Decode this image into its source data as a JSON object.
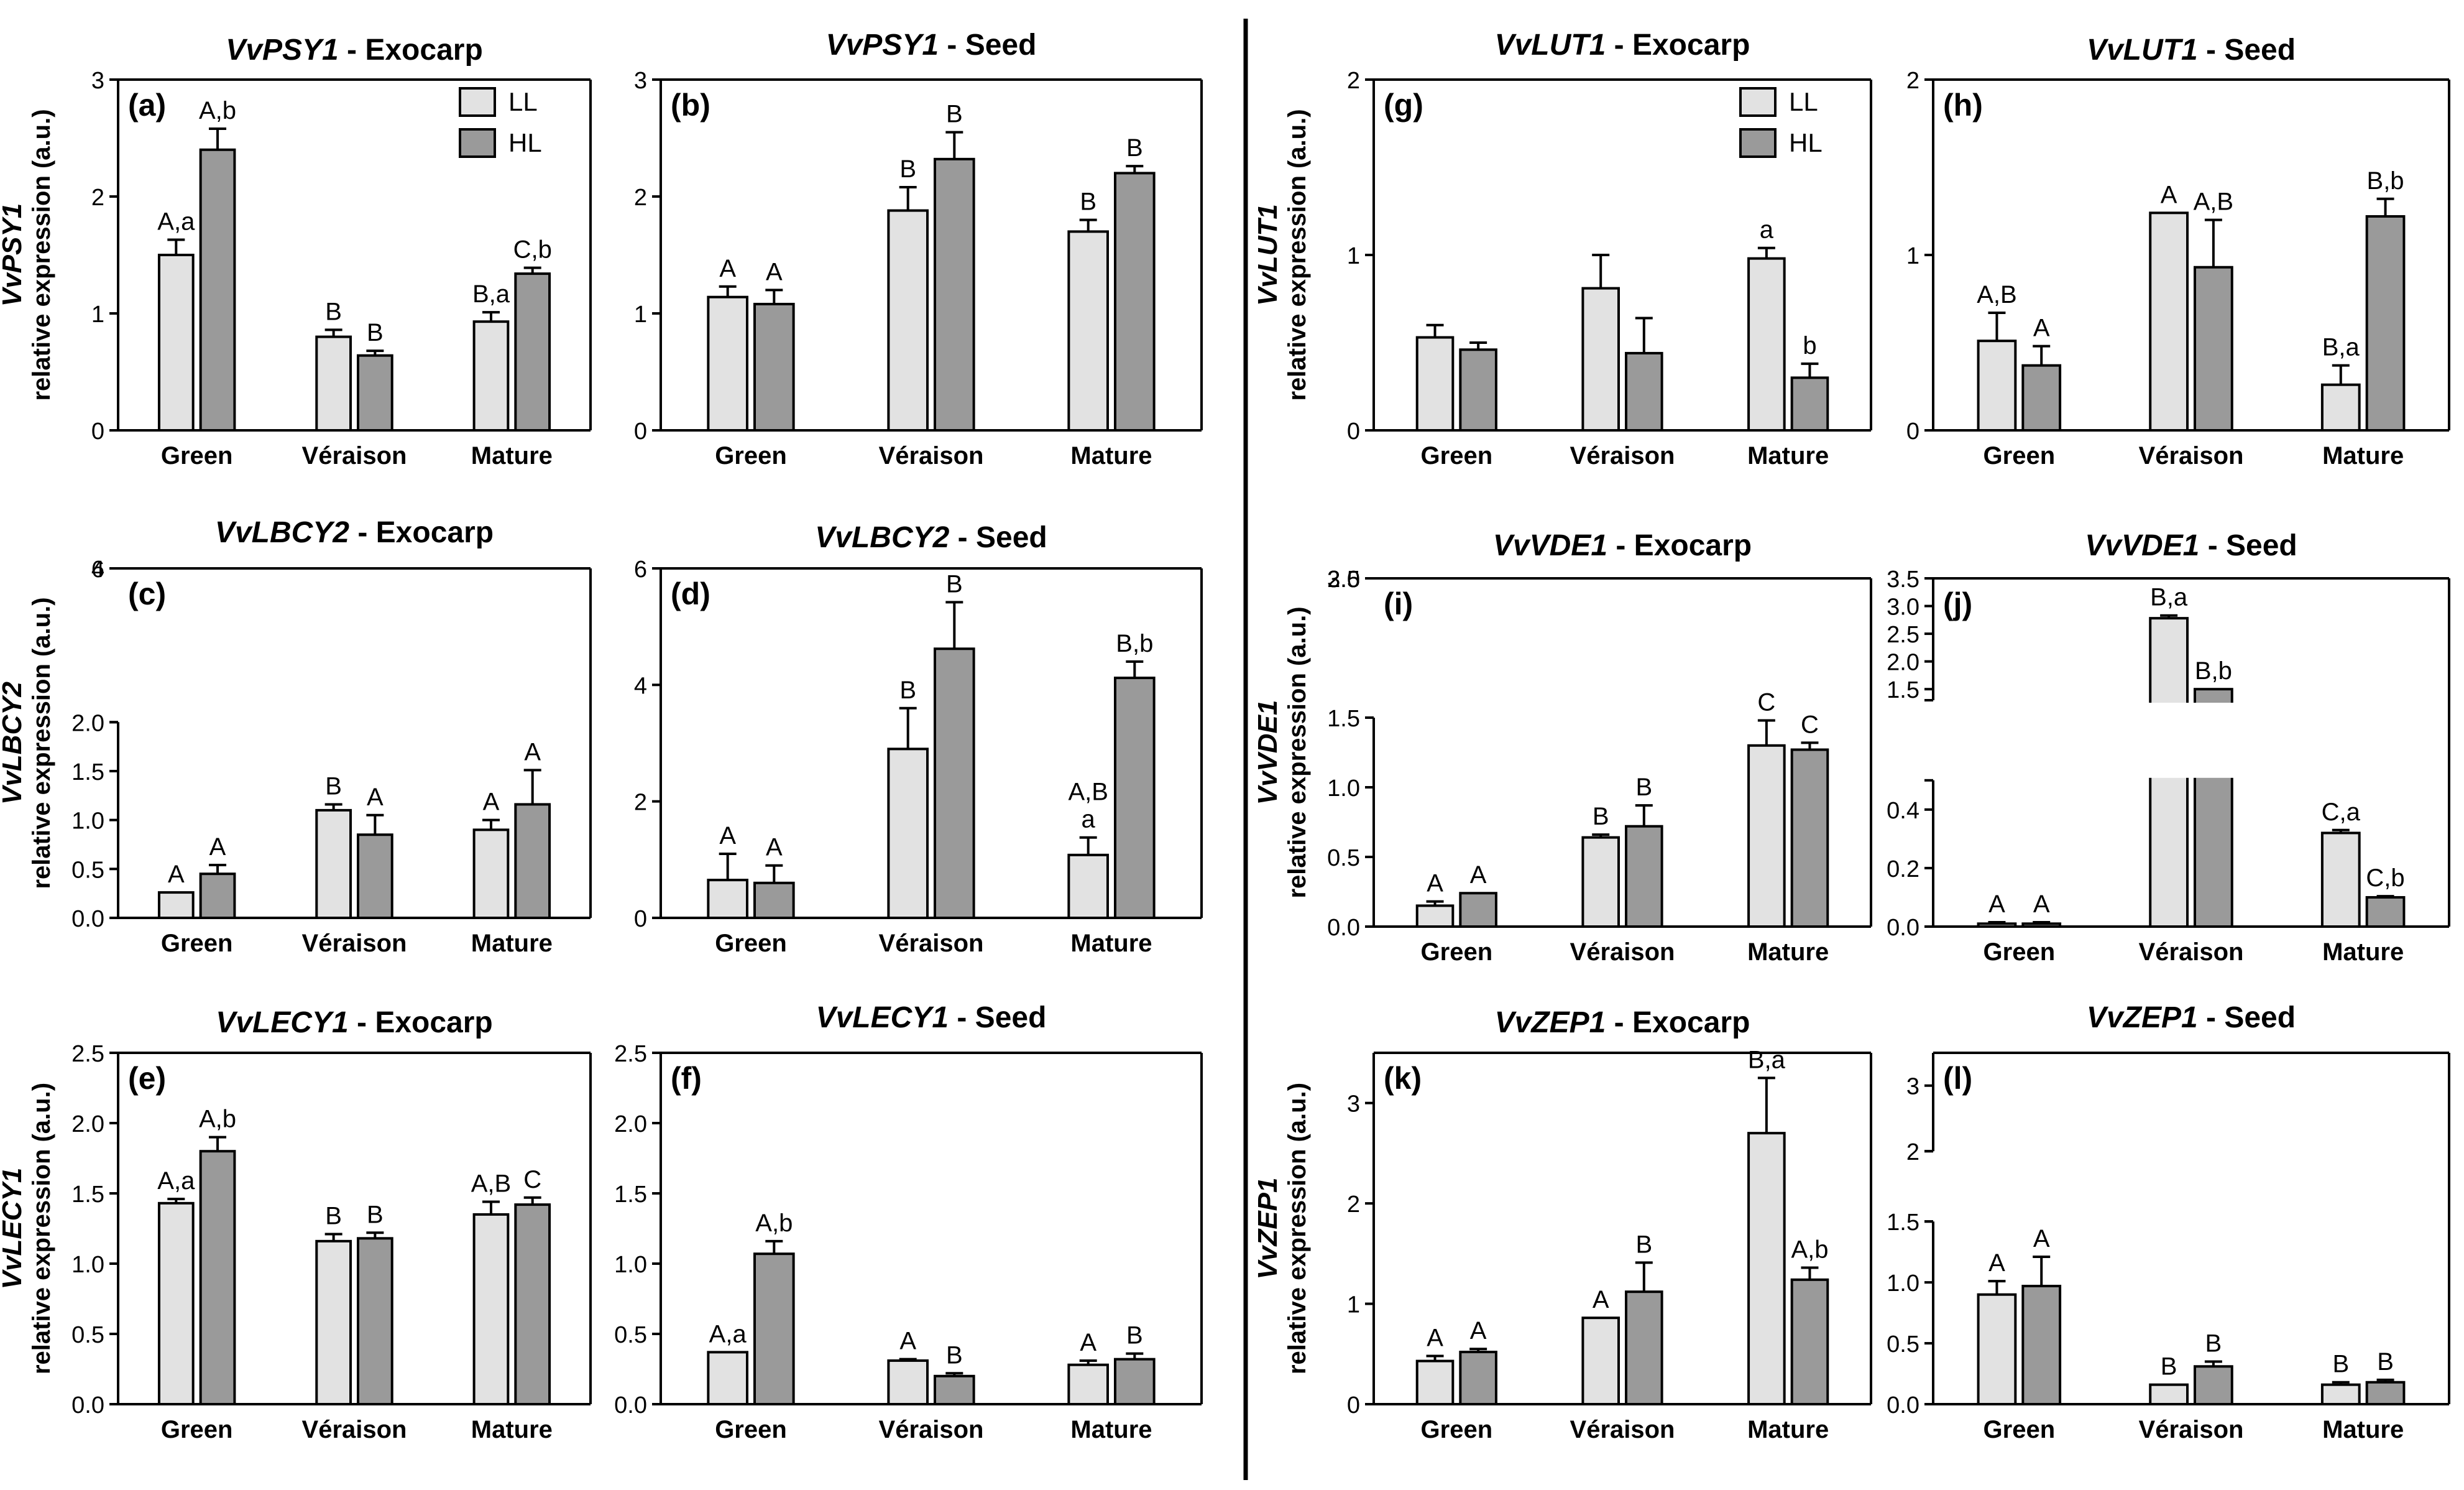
{
  "figure": {
    "colors": {
      "LL": "#e2e2e2",
      "HL": "#9a9a9a",
      "axis": "#000000"
    },
    "legend": [
      "LL",
      "HL"
    ],
    "categories": [
      "Green",
      "Véraison",
      "Mature"
    ]
  },
  "chart_data": [
    {
      "type": "bar",
      "panel": "(a)",
      "title_gene": "VvPSY1",
      "title_tissue": " - Exocarp",
      "ylabel_gene": "VvPSY1",
      "ylabel": "relative expression (a.u.)",
      "categories": [
        "Green",
        "Véraison",
        "Mature"
      ],
      "ylim": [
        0,
        3
      ],
      "yticks": [
        0,
        1,
        2,
        3
      ],
      "legend": "top-right",
      "series": [
        {
          "name": "LL",
          "values": [
            1.5,
            0.8,
            0.93
          ],
          "errors": [
            0.13,
            0.06,
            0.08
          ],
          "labels": [
            "A,a",
            "B",
            "B,a"
          ]
        },
        {
          "name": "HL",
          "values": [
            2.4,
            0.64,
            1.34
          ],
          "errors": [
            0.18,
            0.04,
            0.05
          ],
          "labels": [
            "A,b",
            "B",
            "C,b"
          ]
        }
      ]
    },
    {
      "type": "bar",
      "panel": "(b)",
      "title_gene": "VvPSY1",
      "title_tissue": " - Seed",
      "categories": [
        "Green",
        "Véraison",
        "Mature"
      ],
      "ylim": [
        0,
        3
      ],
      "yticks": [
        0,
        1,
        2,
        3
      ],
      "series": [
        {
          "name": "LL",
          "values": [
            1.14,
            1.88,
            1.7
          ],
          "errors": [
            0.09,
            0.2,
            0.1
          ],
          "labels": [
            "A",
            "B",
            "B"
          ]
        },
        {
          "name": "HL",
          "values": [
            1.08,
            2.32,
            2.2
          ],
          "errors": [
            0.12,
            0.23,
            0.06
          ],
          "labels": [
            "A",
            "B",
            "B"
          ]
        }
      ]
    },
    {
      "type": "bar",
      "panel": "(c)",
      "title_gene": "VvLBCY2",
      "title_tissue": " - Exocarp",
      "ylabel_gene": "VvLBCY2",
      "ylabel": "relative expression (a.u.)",
      "categories": [
        "Green",
        "Véraison",
        "Mature"
      ],
      "ylim": [
        0,
        6
      ],
      "axis_break": [
        2,
        4
      ],
      "yticks": [
        0,
        0.5,
        1.0,
        1.5,
        2.0,
        4,
        6
      ],
      "ytick_labels": [
        "0.0",
        "0.5",
        "1.0",
        "1.5",
        "2.0",
        "4",
        "6"
      ],
      "series": [
        {
          "name": "LL",
          "values": [
            0.26,
            1.1,
            0.9
          ],
          "errors": [
            0,
            0.06,
            0.1
          ],
          "labels": [
            "A",
            "B",
            "A"
          ]
        },
        {
          "name": "HL",
          "values": [
            0.45,
            0.85,
            1.16
          ],
          "errors": [
            0.09,
            0.2,
            0.35
          ],
          "labels": [
            "A",
            "A",
            "A"
          ]
        }
      ]
    },
    {
      "type": "bar",
      "panel": "(d)",
      "title_gene": "VvLBCY2",
      "title_tissue": " - Seed",
      "categories": [
        "Green",
        "Véraison",
        "Mature"
      ],
      "ylim": [
        0,
        6
      ],
      "yticks": [
        0,
        2,
        4,
        6
      ],
      "series": [
        {
          "name": "LL",
          "values": [
            0.65,
            2.9,
            1.08
          ],
          "errors": [
            0.45,
            0.7,
            0.3
          ],
          "labels": [
            "A",
            "B",
            "A,B\na"
          ]
        },
        {
          "name": "HL",
          "values": [
            0.6,
            4.62,
            4.12
          ],
          "errors": [
            0.3,
            0.8,
            0.28
          ],
          "labels": [
            "A",
            "B",
            "B,b"
          ]
        }
      ]
    },
    {
      "type": "bar",
      "panel": "(e)",
      "title_gene": "VvLECY1",
      "title_tissue": " - Exocarp",
      "ylabel_gene": "VvLECY1",
      "ylabel": "relative expression (a.u.)",
      "categories": [
        "Green",
        "Véraison",
        "Mature"
      ],
      "ylim": [
        0,
        2.5
      ],
      "yticks": [
        0,
        0.5,
        1.0,
        1.5,
        2.0,
        2.5
      ],
      "ytick_labels": [
        "0.0",
        "0.5",
        "1.0",
        "1.5",
        "2.0",
        "2.5"
      ],
      "series": [
        {
          "name": "LL",
          "values": [
            1.43,
            1.16,
            1.35
          ],
          "errors": [
            0.03,
            0.05,
            0.09
          ],
          "labels": [
            "A,a",
            "B",
            "A,B"
          ]
        },
        {
          "name": "HL",
          "values": [
            1.8,
            1.18,
            1.42
          ],
          "errors": [
            0.1,
            0.04,
            0.05
          ],
          "labels": [
            "A,b",
            "B",
            "C"
          ]
        }
      ]
    },
    {
      "type": "bar",
      "panel": "(f)",
      "title_gene": "VvLECY1",
      "title_tissue": " - Seed",
      "categories": [
        "Green",
        "Véraison",
        "Mature"
      ],
      "ylim": [
        0,
        2.5
      ],
      "yticks": [
        0,
        0.5,
        1.0,
        1.5,
        2.0,
        2.5
      ],
      "ytick_labels": [
        "0.0",
        "0.5",
        "1.0",
        "1.5",
        "2.0",
        "2.5"
      ],
      "series": [
        {
          "name": "LL",
          "values": [
            0.37,
            0.31,
            0.28
          ],
          "errors": [
            0,
            0.01,
            0.03
          ],
          "labels": [
            "A,a",
            "A",
            "A"
          ]
        },
        {
          "name": "HL",
          "values": [
            1.07,
            0.2,
            0.32
          ],
          "errors": [
            0.09,
            0.02,
            0.04
          ],
          "labels": [
            "A,b",
            "B",
            "B"
          ]
        }
      ]
    },
    {
      "type": "bar",
      "panel": "(g)",
      "title_gene": "VvLUT1",
      "title_tissue": " - Exocarp",
      "ylabel_gene": "VvLUT1",
      "ylabel": "relative expression (a.u.)",
      "categories": [
        "Green",
        "Véraison",
        "Mature"
      ],
      "ylim": [
        0,
        2
      ],
      "yticks": [
        0,
        1,
        2
      ],
      "legend": "top-right",
      "series": [
        {
          "name": "LL",
          "values": [
            0.53,
            0.81,
            0.98
          ],
          "errors": [
            0.07,
            0.19,
            0.06
          ],
          "labels": [
            "",
            "",
            "a"
          ]
        },
        {
          "name": "HL",
          "values": [
            0.46,
            0.44,
            0.3
          ],
          "errors": [
            0.04,
            0.2,
            0.08
          ],
          "labels": [
            "",
            "",
            "b"
          ]
        }
      ]
    },
    {
      "type": "bar",
      "panel": "(h)",
      "title_gene": "VvLUT1",
      "title_tissue": " - Seed",
      "categories": [
        "Green",
        "Véraison",
        "Mature"
      ],
      "ylim": [
        0,
        2
      ],
      "yticks": [
        0,
        1,
        2
      ],
      "series": [
        {
          "name": "LL",
          "values": [
            0.51,
            1.24,
            0.26
          ],
          "errors": [
            0.16,
            0,
            0.11
          ],
          "labels": [
            "A,B",
            "A",
            "B,a"
          ]
        },
        {
          "name": "HL",
          "values": [
            0.37,
            0.93,
            1.22
          ],
          "errors": [
            0.11,
            0.27,
            0.1
          ],
          "labels": [
            "A",
            "A,B",
            "B,b"
          ]
        }
      ]
    },
    {
      "type": "bar",
      "panel": "(i)",
      "title_gene": "VvVDE1",
      "title_tissue": " - Exocarp",
      "ylabel_gene": "VvVDE1",
      "ylabel": "relative expression (a.u.)",
      "categories": [
        "Green",
        "Véraison",
        "Mature"
      ],
      "ylim": [
        0,
        3.5
      ],
      "axis_break": [
        1.5,
        2.5
      ],
      "yticks": [
        0,
        0.5,
        1.0,
        1.5,
        2.5,
        3.0,
        3.5
      ],
      "ytick_labels": [
        "0.0",
        "0.5",
        "1.0",
        "1.5",
        "2.5",
        "3.0",
        "3.5"
      ],
      "series": [
        {
          "name": "LL",
          "values": [
            0.15,
            0.64,
            1.3
          ],
          "errors": [
            0.03,
            0.02,
            0.18
          ],
          "labels": [
            "A",
            "B",
            "C"
          ]
        },
        {
          "name": "HL",
          "values": [
            0.24,
            0.72,
            1.27
          ],
          "errors": [
            0,
            0.15,
            0.05
          ],
          "labels": [
            "A",
            "B",
            "C"
          ]
        }
      ]
    },
    {
      "type": "bar",
      "panel": "(j)",
      "title_gene": "VvVDE1",
      "title_tissue": " - Seed",
      "categories": [
        "Green",
        "Véraison",
        "Mature"
      ],
      "ylim": [
        0,
        3.5
      ],
      "axis_break": [
        0.5,
        1.3
      ],
      "yticks": [
        0,
        0.2,
        0.4,
        1.5,
        2.0,
        2.5,
        3.0,
        3.5
      ],
      "ytick_labels": [
        "0.0",
        "0.2",
        "0.4",
        "1.5",
        "2.0",
        "2.5",
        "3.0",
        "3.5"
      ],
      "series": [
        {
          "name": "LL",
          "values": [
            0.01,
            2.78,
            0.32
          ],
          "errors": [
            0.005,
            0.05,
            0.01
          ],
          "labels": [
            "A",
            "B,a",
            "C,a"
          ]
        },
        {
          "name": "HL",
          "values": [
            0.01,
            1.5,
            0.1
          ],
          "errors": [
            0.005,
            0,
            0.004
          ],
          "labels": [
            "A",
            "B,b",
            "C,b"
          ]
        }
      ]
    },
    {
      "type": "bar",
      "panel": "(k)",
      "title_gene": "VvZEP1",
      "title_tissue": " - Exocarp",
      "ylabel_gene": "VvZEP1",
      "ylabel": "relative expression (a.u.)",
      "categories": [
        "Green",
        "Véraison",
        "Mature"
      ],
      "ylim": [
        0,
        3.5
      ],
      "yticks": [
        0,
        1,
        2,
        3
      ],
      "series": [
        {
          "name": "LL",
          "values": [
            0.43,
            0.86,
            2.7
          ],
          "errors": [
            0.05,
            0,
            0.55
          ],
          "labels": [
            "A",
            "A",
            "B,a"
          ]
        },
        {
          "name": "HL",
          "values": [
            0.52,
            1.12,
            1.24
          ],
          "errors": [
            0.03,
            0.29,
            0.12
          ],
          "labels": [
            "A",
            "B",
            "A,b"
          ]
        }
      ]
    },
    {
      "type": "bar",
      "panel": "(l)",
      "title_gene": "VvZEP1",
      "title_tissue": " - Seed",
      "categories": [
        "Green",
        "Véraison",
        "Mature"
      ],
      "ylim": [
        0,
        3.5
      ],
      "axis_break": [
        1.5,
        2
      ],
      "yticks": [
        0,
        0.5,
        1.0,
        1.5,
        2,
        3
      ],
      "ytick_labels": [
        "0.0",
        "0.5",
        "1.0",
        "1.5",
        "2",
        "3"
      ],
      "series": [
        {
          "name": "LL",
          "values": [
            0.9,
            0.16,
            0.16
          ],
          "errors": [
            0.11,
            0,
            0.02
          ],
          "labels": [
            "A",
            "B",
            "B"
          ]
        },
        {
          "name": "HL",
          "values": [
            0.97,
            0.31,
            0.18
          ],
          "errors": [
            0.24,
            0.04,
            0.02
          ],
          "labels": [
            "A",
            "B",
            "B"
          ]
        }
      ]
    }
  ]
}
